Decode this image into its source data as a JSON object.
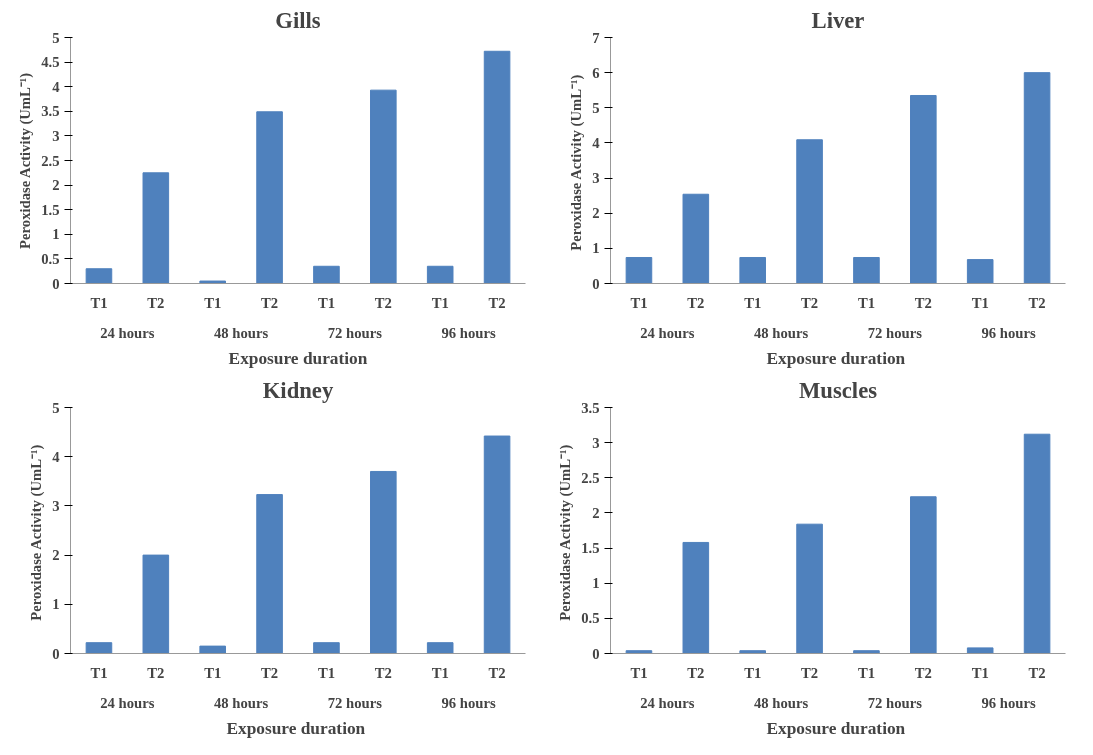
{
  "chart_data": [
    {
      "type": "bar",
      "title": "Gills",
      "xlabel": "Exposure duration",
      "ylabel": "Peroxidase Activity (UmL⁻¹)",
      "categories": [
        "T1",
        "T2",
        "T1",
        "T2",
        "T1",
        "T2",
        "T1",
        "T2"
      ],
      "annotations": [
        "24 hours",
        "48 hours",
        "72 hours",
        "96 hours"
      ],
      "values": [
        0.3,
        2.25,
        0.05,
        3.49,
        0.35,
        3.93,
        0.35,
        4.72
      ],
      "color": "#4f81bd",
      "ylim": [
        0,
        5
      ],
      "yticks": [
        0,
        0.5,
        1,
        1.5,
        2,
        2.5,
        3,
        3.5,
        4,
        4.5,
        5
      ],
      "grid": false,
      "legend": false
    },
    {
      "type": "bar",
      "title": "Liver",
      "xlabel": "Exposure  duration",
      "ylabel": "Peroxidase  Activity (UmL⁻¹)",
      "categories": [
        "T1",
        "T2",
        "T1",
        "T2",
        "T1",
        "T2",
        "T1",
        "T2"
      ],
      "annotations": [
        "24 hours",
        "48 hours",
        "72 hours",
        "96 hours"
      ],
      "values": [
        0.74,
        2.54,
        0.74,
        4.09,
        0.74,
        5.35,
        0.68,
        6.0
      ],
      "color": "#4f81bd",
      "ylim": [
        0,
        7
      ],
      "yticks": [
        0,
        1,
        2,
        3,
        4,
        5,
        6,
        7
      ],
      "grid": false,
      "legend": false
    },
    {
      "type": "bar",
      "title": "Kidney",
      "xlabel": "Exposure  duration",
      "ylabel": "Peroxidase  Activity (UmL⁻¹)",
      "categories": [
        "T1",
        "T2",
        "T1",
        "T2",
        "T1",
        "T2",
        "T1",
        "T2"
      ],
      "annotations": [
        "24 hours",
        "48 hours",
        "72 hours",
        "96 hours"
      ],
      "values": [
        0.22,
        2.0,
        0.15,
        3.23,
        0.22,
        3.7,
        0.22,
        4.42
      ],
      "color": "#4f81bd",
      "ylim": [
        0,
        5
      ],
      "yticks": [
        0,
        1,
        2,
        3,
        4,
        5
      ],
      "grid": false,
      "legend": false
    },
    {
      "type": "bar",
      "title": "Muscles",
      "xlabel": "Exposure  duration",
      "ylabel": "Peroxidase  Activity (UmL⁻¹)",
      "categories": [
        "T1",
        "T2",
        "T1",
        "T2",
        "T1",
        "T2",
        "T1",
        "T2"
      ],
      "annotations": [
        "24 hours",
        "48 hours",
        "72 hours",
        "96 hours"
      ],
      "values": [
        0.04,
        1.58,
        0.04,
        1.84,
        0.04,
        2.23,
        0.08,
        3.12
      ],
      "color": "#4f81bd",
      "ylim": [
        0,
        3.5
      ],
      "yticks": [
        0,
        0.5,
        1,
        1.5,
        2,
        2.5,
        3,
        3.5
      ],
      "grid": false,
      "legend": false
    }
  ]
}
